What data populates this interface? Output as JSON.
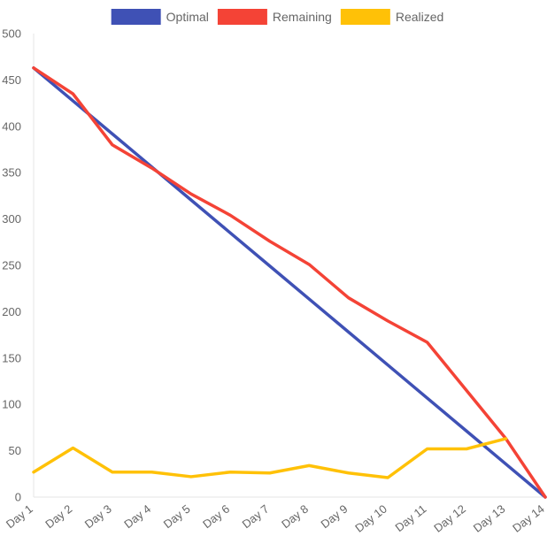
{
  "chart_data": {
    "type": "line",
    "title": "",
    "xlabel": "",
    "ylabel": "",
    "categories": [
      "Day 1",
      "Day 2",
      "Day 3",
      "Day 4",
      "Day 5",
      "Day 6",
      "Day 7",
      "Day 8",
      "Day 9",
      "Day 10",
      "Day 11",
      "Day 12",
      "Day 13",
      "Day 14"
    ],
    "ylim": [
      0,
      500
    ],
    "yticks": [
      "0",
      "50",
      "100",
      "150",
      "200",
      "250",
      "300",
      "350",
      "400",
      "450",
      "500"
    ],
    "grid": false,
    "legend_position": "top",
    "series": [
      {
        "name": "Optimal",
        "color": "#3f51b5",
        "values": [
          463,
          427.4,
          391.8,
          356.2,
          320.5,
          284.9,
          249.3,
          213.7,
          178.1,
          142.5,
          106.8,
          71.2,
          35.6,
          0
        ]
      },
      {
        "name": "Remaining",
        "color": "#f44336",
        "values": [
          463,
          435,
          380,
          355,
          327,
          304,
          276,
          251,
          215,
          190,
          167,
          115,
          63,
          0
        ]
      },
      {
        "name": "Realized",
        "color": "#ffc107",
        "values": [
          27,
          53,
          27,
          27,
          22,
          27,
          26,
          34,
          26,
          21,
          52,
          52,
          63,
          null
        ]
      }
    ]
  }
}
